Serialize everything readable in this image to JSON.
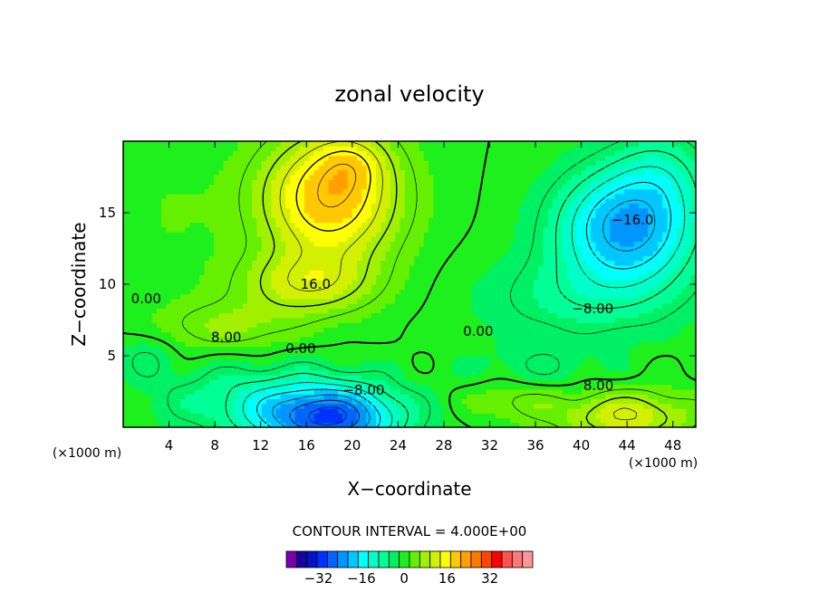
{
  "chart_data": {
    "type": "heatmap",
    "title": "zonal velocity",
    "xlabel": "X−coordinate",
    "ylabel": "Z−coordinate",
    "x_unit_left": "(×1000 m)",
    "x_unit_right": "(×1000 m)",
    "xlim": [
      0,
      50
    ],
    "ylim": [
      0,
      20
    ],
    "x_ticks": [
      4,
      8,
      12,
      16,
      20,
      24,
      28,
      32,
      36,
      40,
      44,
      48
    ],
    "y_ticks": [
      5,
      10,
      15
    ],
    "contour_interval_text": "CONTOUR INTERVAL = 4.000E+00",
    "contour_labels": [
      {
        "text": "16.0",
        "x": 16.8,
        "y": 10.0
      },
      {
        "text": "0.00",
        "x": 2.0,
        "y": 9.0
      },
      {
        "text": "8.00",
        "x": 9.0,
        "y": 6.3
      },
      {
        "text": "0.00",
        "x": 15.5,
        "y": 5.5
      },
      {
        "text": "−8.00",
        "x": 21.0,
        "y": 2.6
      },
      {
        "text": "0.00",
        "x": 31.0,
        "y": 6.7
      },
      {
        "text": "−8.00",
        "x": 41.0,
        "y": 8.3
      },
      {
        "text": "−16.0",
        "x": 44.5,
        "y": 14.5
      },
      {
        "text": "8.00",
        "x": 41.5,
        "y": 2.9
      }
    ],
    "colorbar": {
      "colors": [
        "#7a00a8",
        "#1a00a0",
        "#0014c8",
        "#0032ff",
        "#0064ff",
        "#0096ff",
        "#00c8ff",
        "#00ffff",
        "#00ffc8",
        "#00ff96",
        "#00f064",
        "#1ef01e",
        "#64f000",
        "#a0f000",
        "#d2f000",
        "#ffff00",
        "#ffc800",
        "#ffa000",
        "#ff7800",
        "#ff4600",
        "#ff0000",
        "#ff5050",
        "#ff7878",
        "#ff9696"
      ],
      "tick_labels": [
        "−32",
        "−16",
        "0",
        "16",
        "32"
      ],
      "tick_values": [
        -32,
        -16,
        0,
        16,
        32
      ],
      "vmin": -44,
      "vmax": 48
    },
    "grid": false
  }
}
